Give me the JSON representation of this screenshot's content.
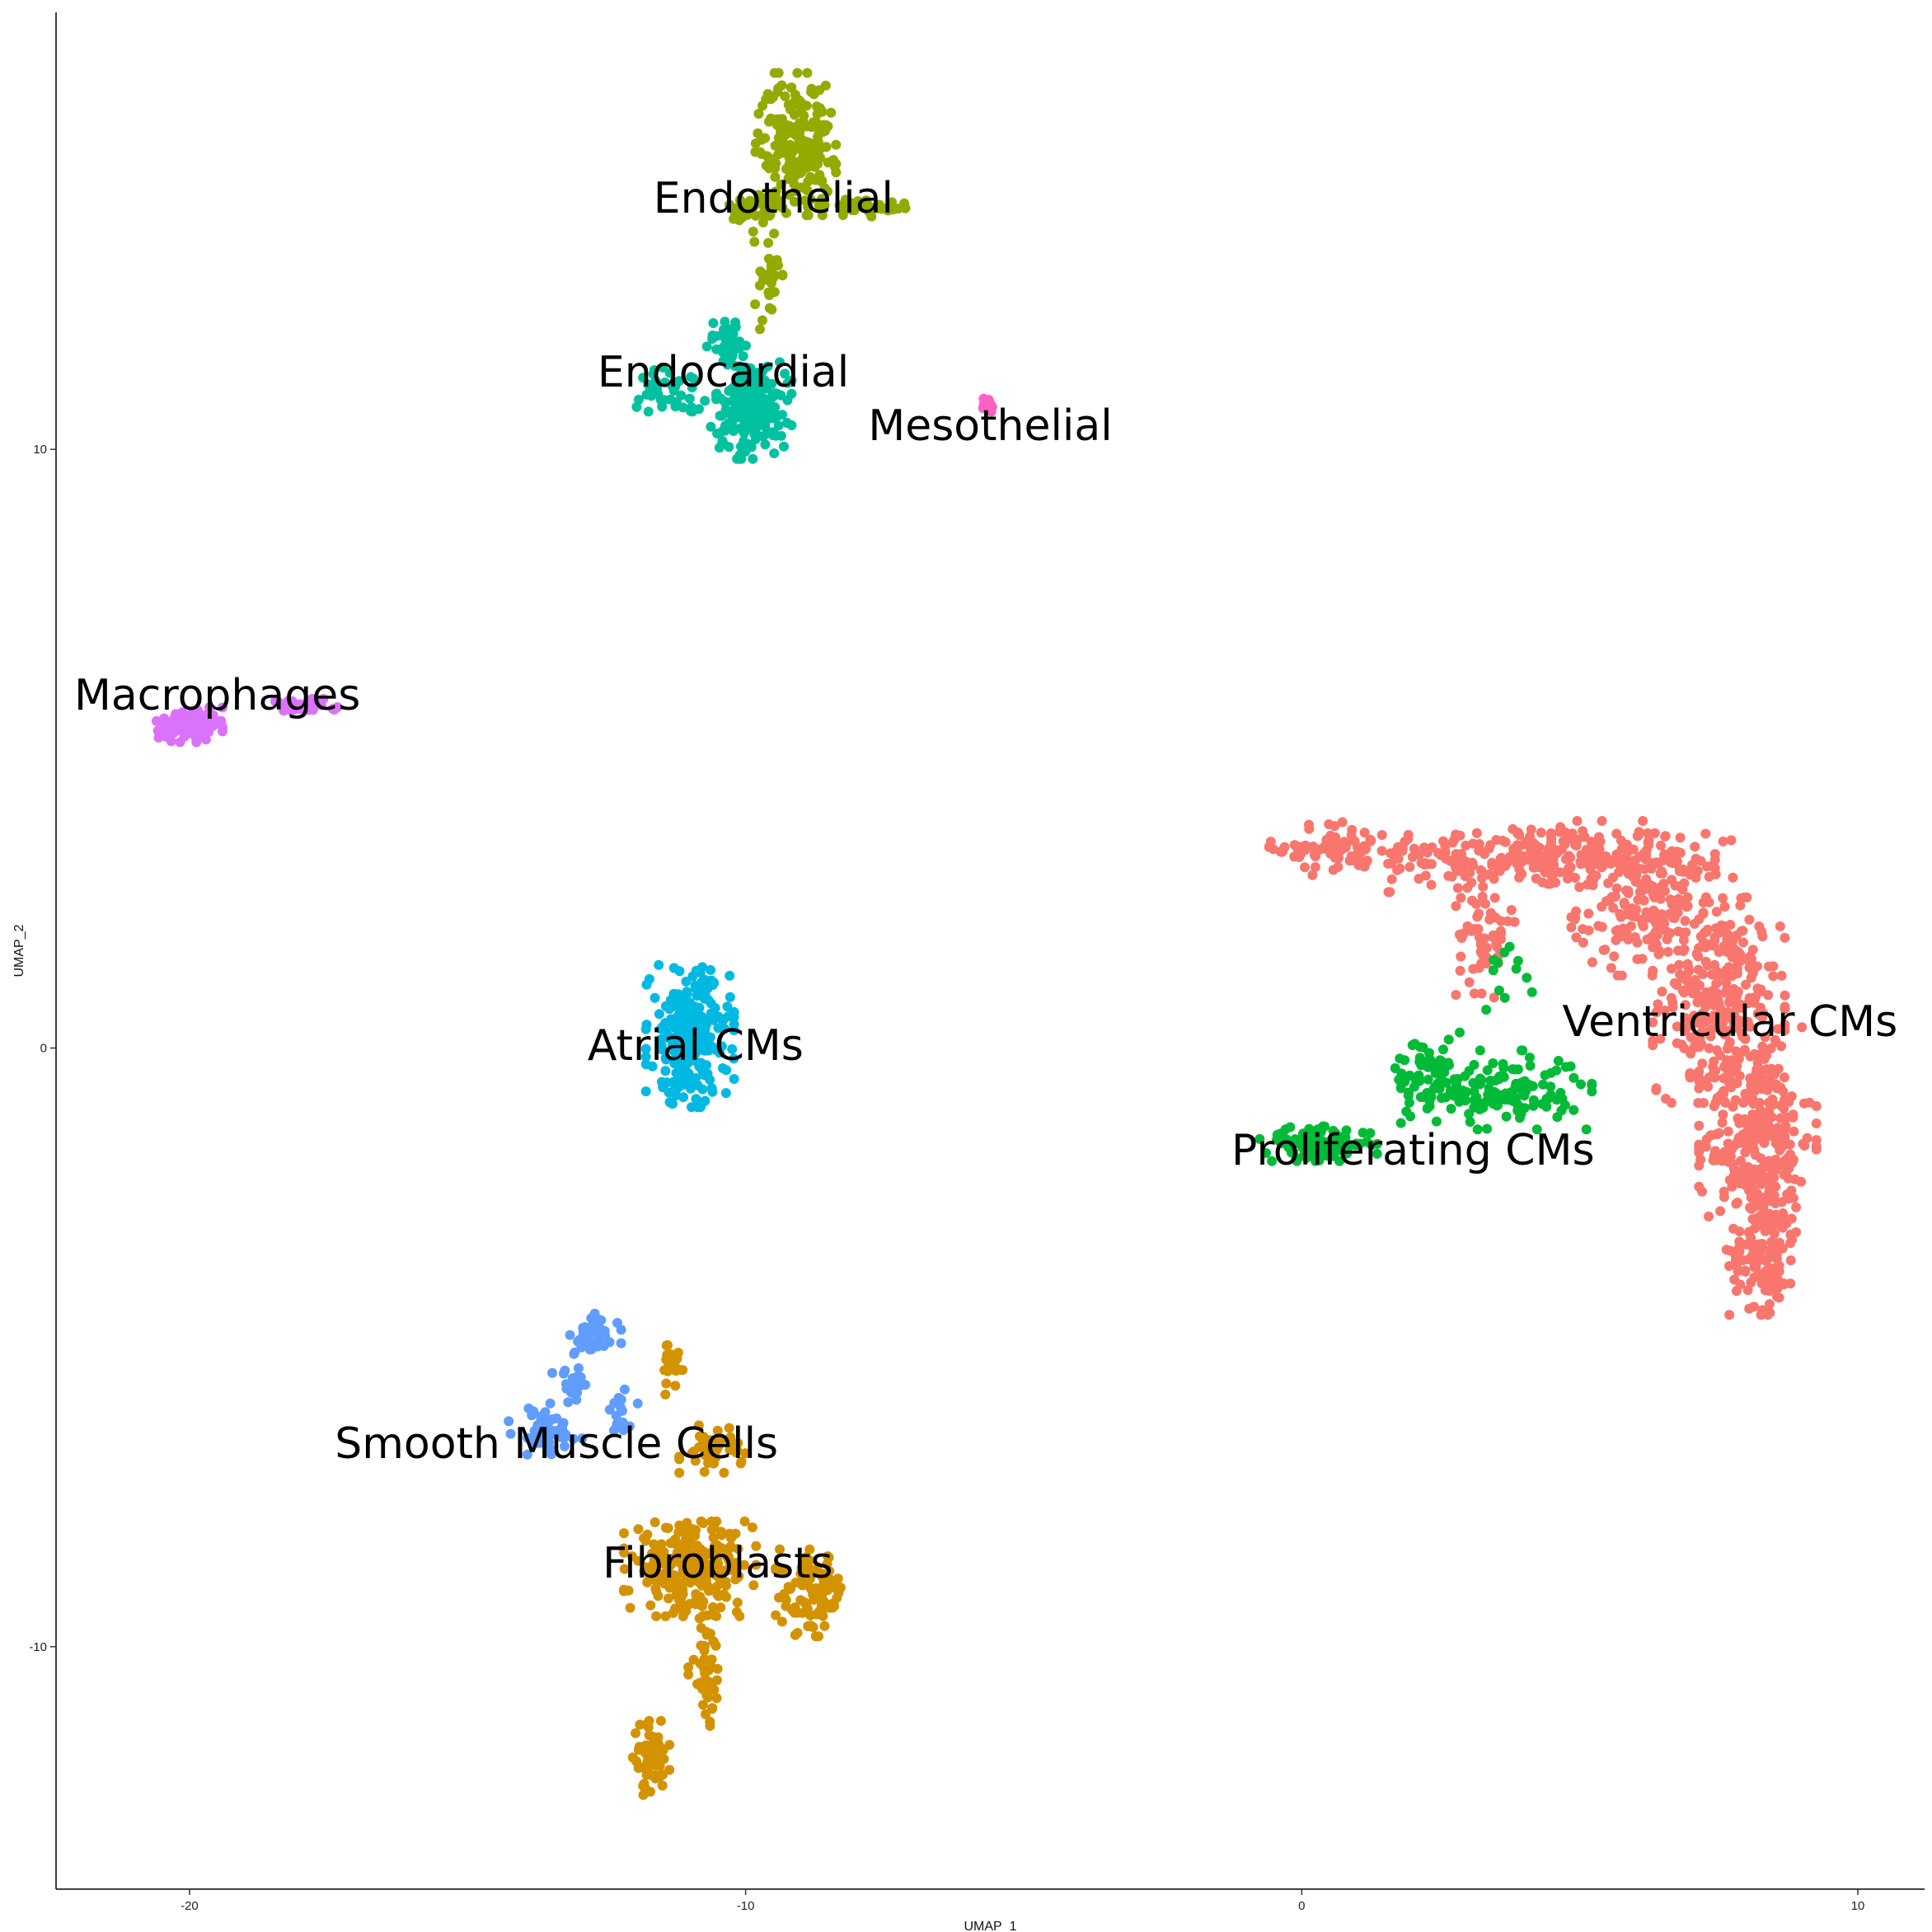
{
  "chart_data": {
    "type": "scatter",
    "title": "",
    "xlabel": "UMAP_1",
    "ylabel": "UMAP_2",
    "xlim": [
      -22.4,
      11.2
    ],
    "ylim": [
      -14.05,
      17.3
    ],
    "grid": false,
    "legend": "none",
    "x_ticks": [
      {
        "value": -20,
        "label": "-20"
      },
      {
        "value": -10,
        "label": "-10"
      },
      {
        "value": 0,
        "label": "0"
      },
      {
        "value": 10,
        "label": "10"
      }
    ],
    "y_ticks": [
      {
        "value": -10,
        "label": "-10"
      },
      {
        "value": 0,
        "label": "0"
      },
      {
        "value": 10,
        "label": "10"
      }
    ],
    "clusters": [
      {
        "name": "Ventricular CMs",
        "color": "#F8766D",
        "label": "Ventricular CMs",
        "label_pos": [
          7.7,
          0.45
        ],
        "regions": [
          {
            "center": [
              4.0,
              3.2
            ],
            "spread": [
              2.6,
              0.45
            ],
            "count": 260
          },
          {
            "center": [
              0.6,
              3.35
            ],
            "spread": [
              0.9,
              0.35
            ],
            "count": 70
          },
          {
            "center": [
              6.3,
              2.4
            ],
            "spread": [
              1.1,
              0.9
            ],
            "count": 200
          },
          {
            "center": [
              7.5,
              0.8
            ],
            "spread": [
              0.9,
              1.3
            ],
            "count": 260
          },
          {
            "center": [
              8.2,
              -1.5
            ],
            "spread": [
              0.8,
              1.4
            ],
            "count": 320
          },
          {
            "center": [
              8.3,
              -3.4
            ],
            "spread": [
              0.5,
              0.8
            ],
            "count": 120
          },
          {
            "center": [
              3.3,
              1.9
            ],
            "spread": [
              0.4,
              0.8
            ],
            "count": 60
          }
        ]
      },
      {
        "name": "Proliferating CMs",
        "color": "#00BA38",
        "label": "Proliferating CMs",
        "label_pos": [
          2.0,
          -1.7
        ],
        "regions": [
          {
            "center": [
              0.3,
              -1.6
            ],
            "spread": [
              0.8,
              0.22
            ],
            "count": 110
          },
          {
            "center": [
              3.5,
              -0.7
            ],
            "spread": [
              1.3,
              0.5
            ],
            "count": 150
          },
          {
            "center": [
              2.3,
              -0.4
            ],
            "spread": [
              0.6,
              0.5
            ],
            "count": 50
          },
          {
            "center": [
              3.7,
              1.3
            ],
            "spread": [
              0.4,
              0.5
            ],
            "count": 12
          }
        ]
      },
      {
        "name": "Endothelial",
        "color": "#93AA00",
        "label": "Endothelial",
        "label_pos": [
          -9.5,
          14.2
        ],
        "regions": [
          {
            "center": [
              -9.1,
              15.1
            ],
            "spread": [
              0.55,
              0.9
            ],
            "count": 200
          },
          {
            "center": [
              -7.8,
              14.05
            ],
            "spread": [
              0.7,
              0.12
            ],
            "count": 40
          },
          {
            "center": [
              -9.8,
              14.0
            ],
            "spread": [
              0.4,
              0.3
            ],
            "count": 40
          },
          {
            "center": [
              -9.6,
              12.8
            ],
            "spread": [
              0.2,
              0.6
            ],
            "count": 30
          }
        ]
      },
      {
        "name": "Endocardial",
        "color": "#00C19F",
        "label": "Endocardial",
        "label_pos": [
          -10.4,
          11.3
        ],
        "regions": [
          {
            "center": [
              -9.9,
              10.7
            ],
            "spread": [
              0.55,
              0.65
            ],
            "count": 210
          },
          {
            "center": [
              -11.3,
              11.0
            ],
            "spread": [
              0.5,
              0.28
            ],
            "count": 40
          },
          {
            "center": [
              -10.3,
              11.8
            ],
            "spread": [
              0.3,
              0.35
            ],
            "count": 30
          }
        ]
      },
      {
        "name": "Mesothelial",
        "color": "#FF61C3",
        "label": "Mesothelial",
        "label_pos": [
          -5.6,
          10.4
        ],
        "regions": [
          {
            "center": [
              -5.65,
              10.75
            ],
            "spread": [
              0.12,
              0.1
            ],
            "count": 18
          }
        ]
      },
      {
        "name": "Macrophages",
        "color": "#DB72FB",
        "label": "Macrophages",
        "label_pos": [
          -19.5,
          5.9
        ],
        "regions": [
          {
            "center": [
              -20.0,
              5.4
            ],
            "spread": [
              0.45,
              0.22
            ],
            "count": 110
          },
          {
            "center": [
              -18.0,
              5.7
            ],
            "spread": [
              0.5,
              0.1
            ],
            "count": 35
          }
        ]
      },
      {
        "name": "Atrial CMs",
        "color": "#00B9E3",
        "label": "Atrial CMs",
        "label_pos": [
          -10.9,
          0.05
        ],
        "regions": [
          {
            "center": [
              -11.0,
              0.2
            ],
            "spread": [
              0.6,
              0.9
            ],
            "count": 260
          }
        ]
      },
      {
        "name": "Smooth Muscle Cells",
        "color": "#619CFF",
        "label": "Smooth Muscle Cells",
        "label_pos": [
          -13.4,
          -6.6
        ],
        "regions": [
          {
            "center": [
              -13.6,
              -6.4
            ],
            "spread": [
              0.5,
              0.35
            ],
            "count": 60
          },
          {
            "center": [
              -12.7,
              -4.8
            ],
            "spread": [
              0.35,
              0.3
            ],
            "count": 40
          },
          {
            "center": [
              -13.1,
              -5.5
            ],
            "spread": [
              0.3,
              0.4
            ],
            "count": 25
          },
          {
            "center": [
              -12.2,
              -6.1
            ],
            "spread": [
              0.25,
              0.3
            ],
            "count": 15
          }
        ]
      },
      {
        "name": "Fibroblasts",
        "color": "#D39200",
        "label": "Fibroblasts",
        "label_pos": [
          -10.5,
          -8.6
        ],
        "regions": [
          {
            "center": [
              -11.0,
              -8.7
            ],
            "spread": [
              0.9,
              0.6
            ],
            "count": 260
          },
          {
            "center": [
              -8.8,
              -9.1
            ],
            "spread": [
              0.5,
              0.55
            ],
            "count": 90
          },
          {
            "center": [
              -10.7,
              -10.4
            ],
            "spread": [
              0.25,
              0.7
            ],
            "count": 45
          },
          {
            "center": [
              -11.7,
              -11.9
            ],
            "spread": [
              0.25,
              0.5
            ],
            "count": 60
          },
          {
            "center": [
              -10.6,
              -6.7
            ],
            "spread": [
              0.45,
              0.3
            ],
            "count": 45
          },
          {
            "center": [
              -11.3,
              -5.4
            ],
            "spread": [
              0.15,
              0.4
            ],
            "count": 18
          }
        ]
      }
    ]
  }
}
